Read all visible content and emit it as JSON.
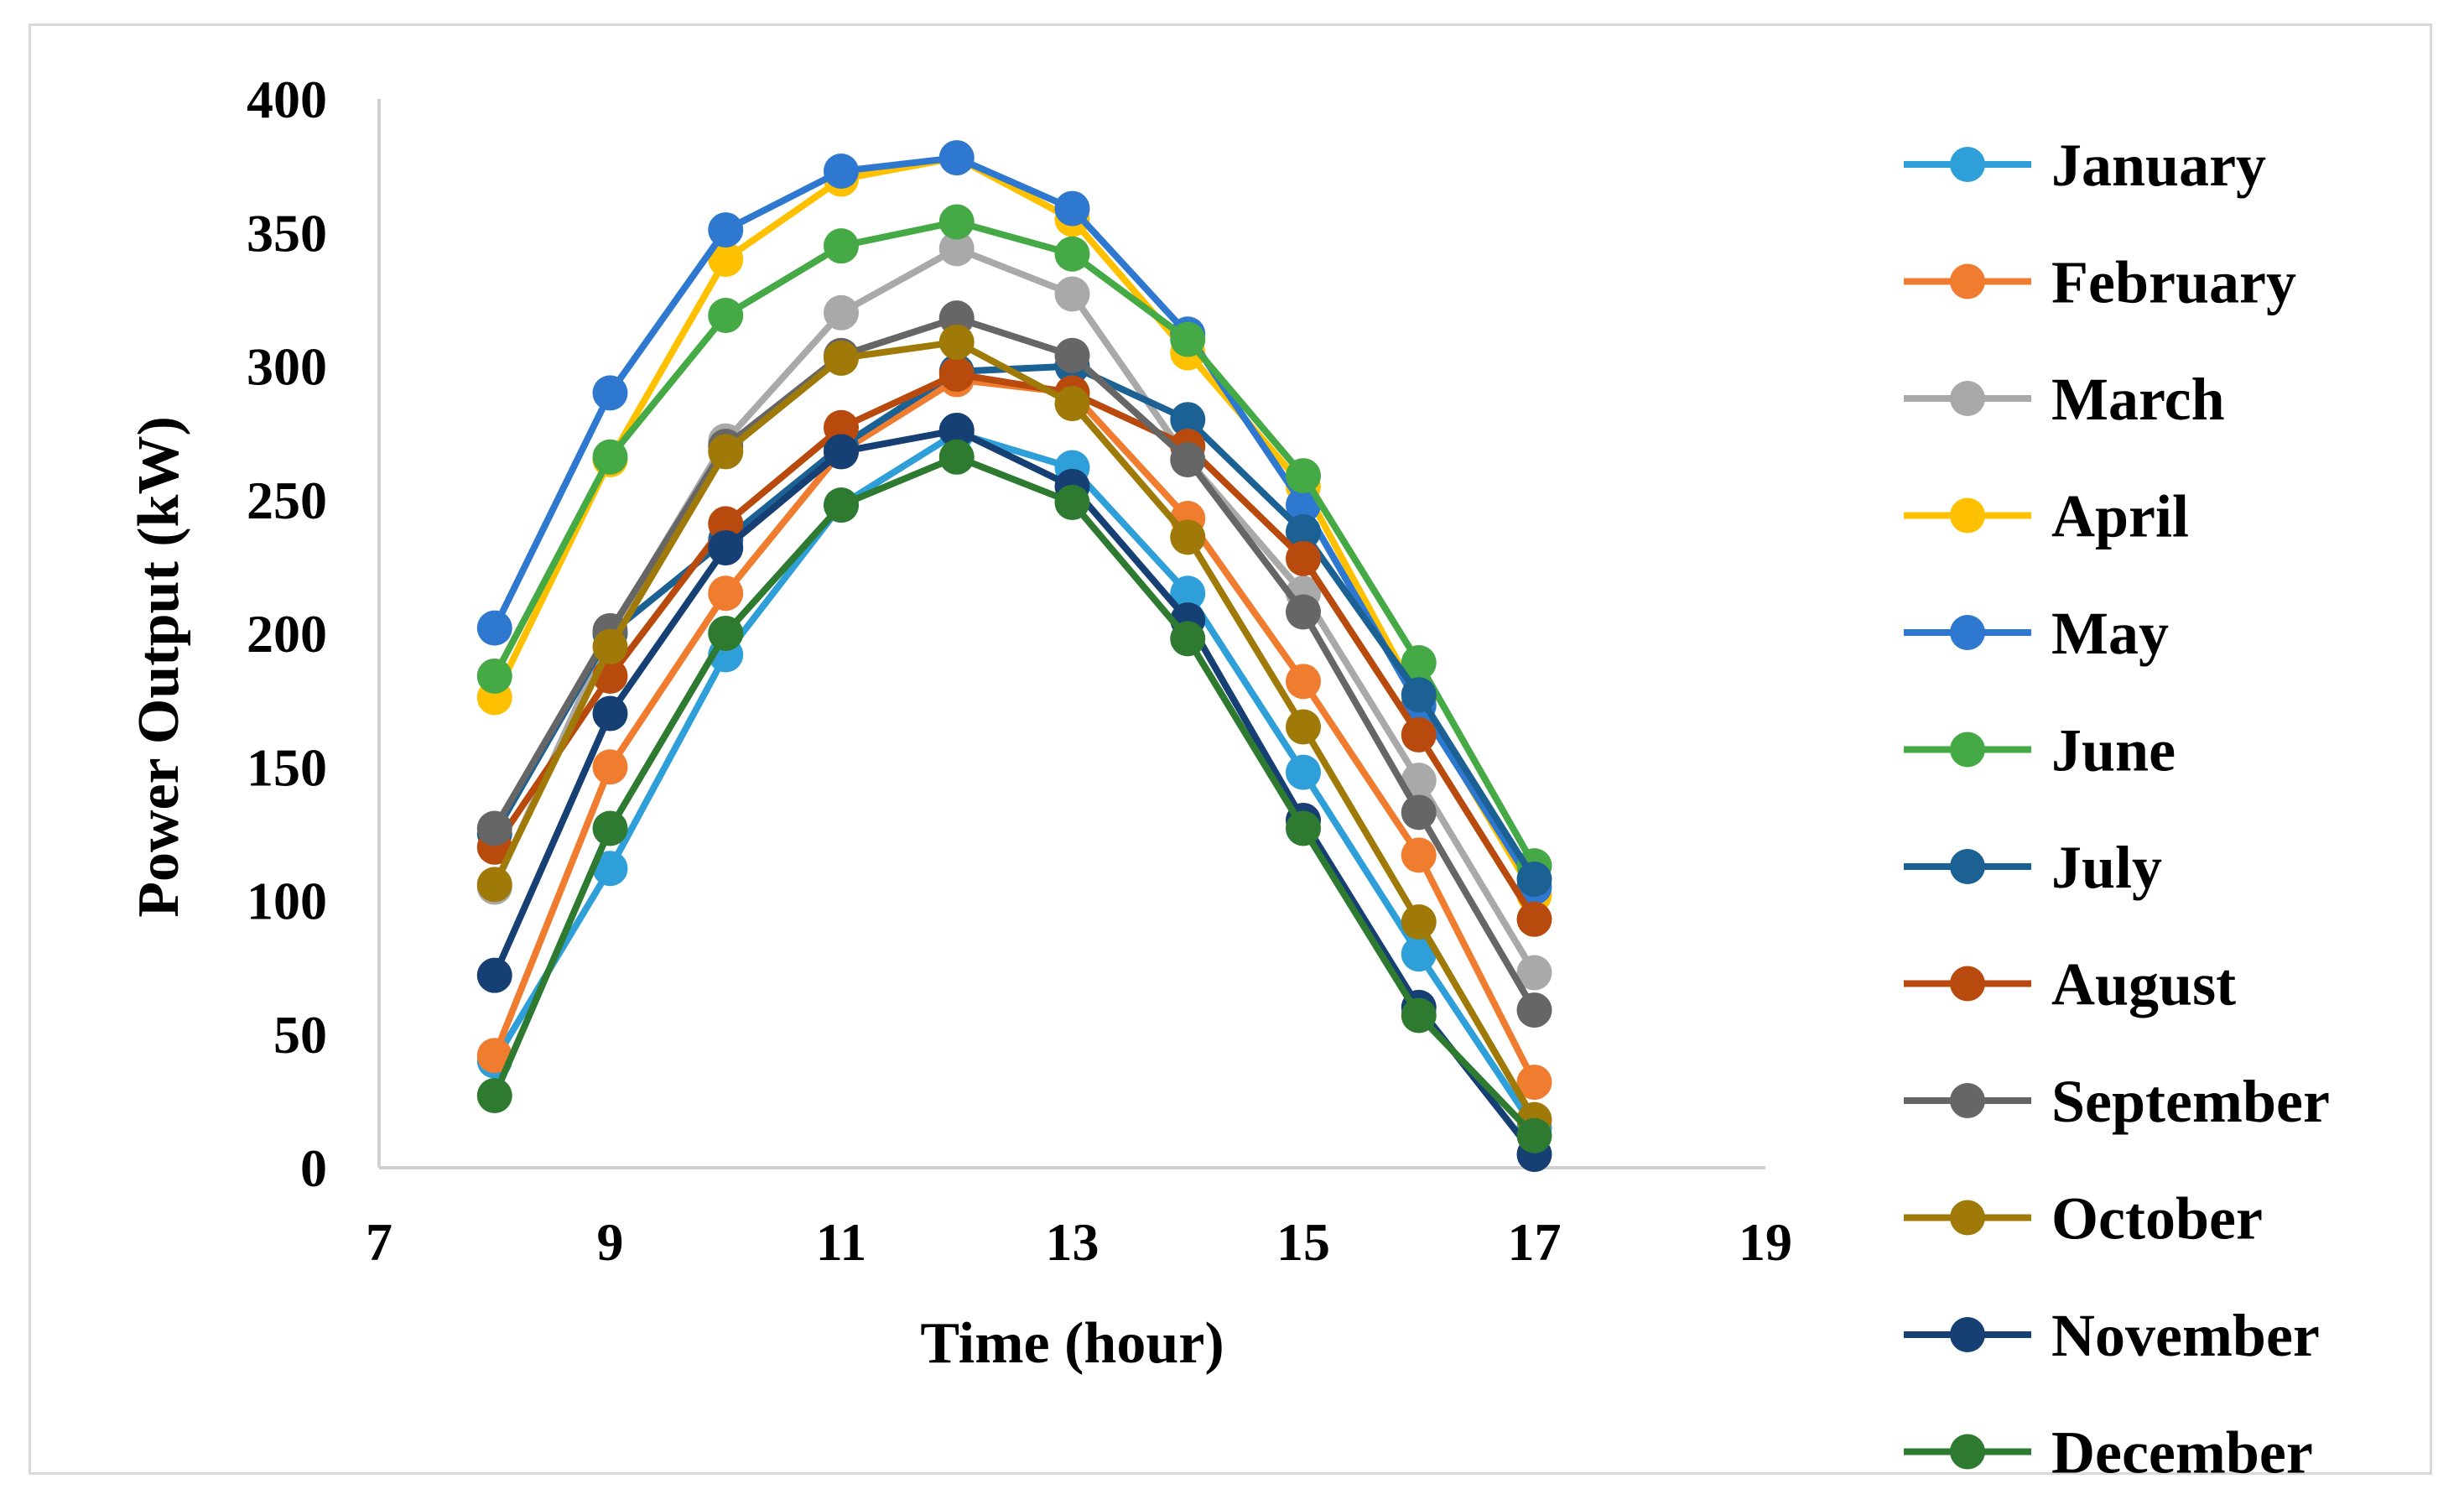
{
  "chart_data": {
    "type": "line",
    "title": "",
    "xlabel": "Time (hour)",
    "ylabel": "Power Output (kW)",
    "xlim": [
      7,
      19
    ],
    "ylim": [
      0,
      400
    ],
    "x_ticks": [
      "7",
      "9",
      "11",
      "13",
      "15",
      "17",
      "19"
    ],
    "y_ticks": [
      "0",
      "50",
      "100",
      "150",
      "200",
      "250",
      "300",
      "350",
      "400"
    ],
    "grid": false,
    "legend_position": "right",
    "x": [
      8,
      9,
      10,
      11,
      12,
      13,
      14,
      15,
      16,
      17
    ],
    "series": [
      {
        "name": "January",
        "color": "#2e9fd8",
        "values": [
          40,
          112,
          192,
          248,
          275,
          262,
          215,
          148,
          80,
          15
        ]
      },
      {
        "name": "February",
        "color": "#f07c30",
        "values": [
          42,
          150,
          215,
          268,
          295,
          290,
          243,
          182,
          117,
          32
        ]
      },
      {
        "name": "March",
        "color": "#a9a9a9",
        "values": [
          105,
          200,
          272,
          320,
          344,
          327,
          265,
          215,
          145,
          73
        ]
      },
      {
        "name": "April",
        "color": "#ffc000",
        "values": [
          176,
          265,
          340,
          370,
          378,
          355,
          305,
          255,
          175,
          102
        ]
      },
      {
        "name": "May",
        "color": "#2f78cf",
        "values": [
          202,
          290,
          351,
          373,
          378,
          359,
          312,
          248,
          173,
          105
        ]
      },
      {
        "name": "June",
        "color": "#45a945",
        "values": [
          184,
          266,
          319,
          345,
          354,
          342,
          310,
          259,
          189,
          113
        ]
      },
      {
        "name": "July",
        "color": "#1c6194",
        "values": [
          125,
          200,
          235,
          270,
          298,
          300,
          280,
          238,
          177,
          108
        ]
      },
      {
        "name": "August",
        "color": "#b84a0e",
        "values": [
          120,
          184,
          241,
          277,
          297,
          290,
          270,
          228,
          162,
          93
        ]
      },
      {
        "name": "September",
        "color": "#666666",
        "values": [
          127,
          201,
          270,
          304,
          318,
          304,
          265,
          208,
          133,
          59
        ]
      },
      {
        "name": "October",
        "color": "#a07a08",
        "values": [
          106,
          195,
          268,
          303,
          309,
          286,
          236,
          165,
          92,
          18
        ]
      },
      {
        "name": "November",
        "color": "#163f74",
        "values": [
          72,
          170,
          232,
          268,
          276,
          255,
          205,
          130,
          60,
          5
        ]
      },
      {
        "name": "December",
        "color": "#2e7a30",
        "values": [
          27,
          127,
          200,
          248,
          266,
          249,
          198,
          127,
          57,
          12
        ]
      }
    ]
  }
}
